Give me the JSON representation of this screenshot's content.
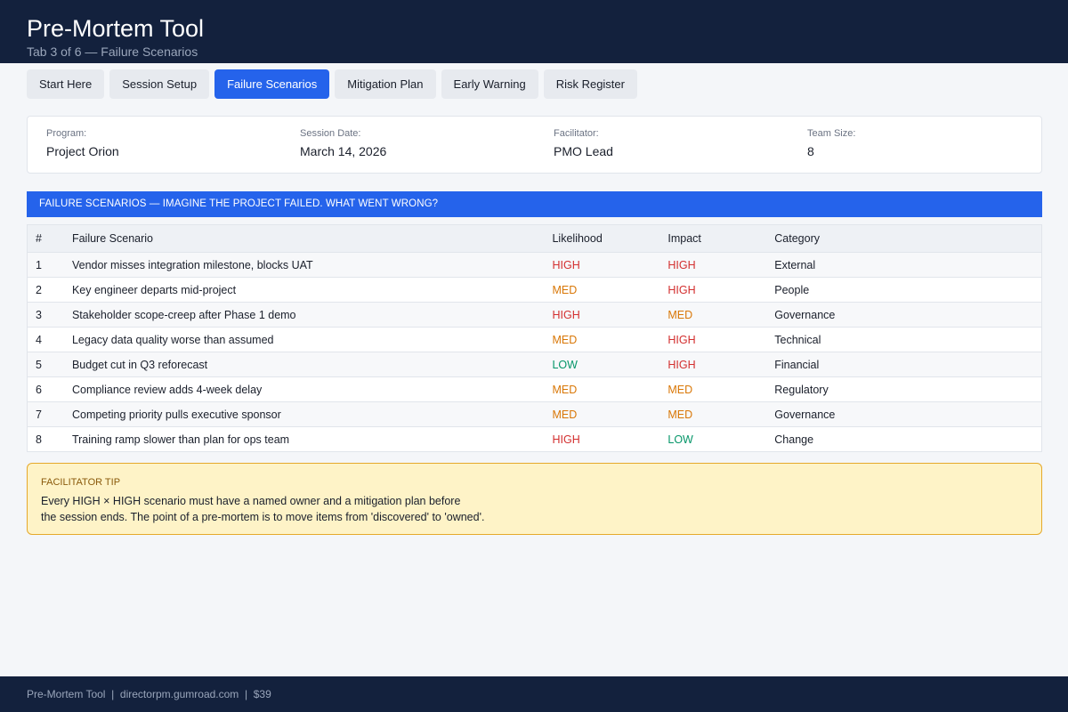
{
  "header": {
    "title": "Pre-Mortem Tool",
    "subtitle": "Tab 3 of 6 — Failure Scenarios"
  },
  "tabs": [
    {
      "label": "Start Here",
      "active": false
    },
    {
      "label": "Session Setup",
      "active": false
    },
    {
      "label": "Failure Scenarios",
      "active": true
    },
    {
      "label": "Mitigation Plan",
      "active": false
    },
    {
      "label": "Early Warning",
      "active": false
    },
    {
      "label": "Risk Register",
      "active": false
    }
  ],
  "info": {
    "program_label": "Program:",
    "program_value": "Project Orion",
    "date_label": "Session Date:",
    "date_value": "March 14, 2026",
    "facilitator_label": "Facilitator:",
    "facilitator_value": "PMO Lead",
    "team_label": "Team Size:",
    "team_value": "8"
  },
  "section": {
    "banner": "FAILURE SCENARIOS — IMAGINE THE PROJECT FAILED.  WHAT WENT WRONG?"
  },
  "table": {
    "headers": {
      "num": "#",
      "scenario": "Failure Scenario",
      "likelihood": "Likelihood",
      "impact": "Impact",
      "category": "Category"
    },
    "rows": [
      {
        "num": "1",
        "scenario": "Vendor misses integration milestone, blocks UAT",
        "likelihood": "HIGH",
        "impact": "HIGH",
        "category": "External"
      },
      {
        "num": "2",
        "scenario": "Key engineer departs mid-project",
        "likelihood": "MED",
        "impact": "HIGH",
        "category": "People"
      },
      {
        "num": "3",
        "scenario": "Stakeholder scope-creep after Phase 1 demo",
        "likelihood": "HIGH",
        "impact": "MED",
        "category": "Governance"
      },
      {
        "num": "4",
        "scenario": "Legacy data quality worse than assumed",
        "likelihood": "MED",
        "impact": "HIGH",
        "category": "Technical"
      },
      {
        "num": "5",
        "scenario": "Budget cut in Q3 reforecast",
        "likelihood": "LOW",
        "impact": "HIGH",
        "category": "Financial"
      },
      {
        "num": "6",
        "scenario": "Compliance review adds 4-week delay",
        "likelihood": "MED",
        "impact": "MED",
        "category": "Regulatory"
      },
      {
        "num": "7",
        "scenario": "Competing priority pulls executive sponsor",
        "likelihood": "MED",
        "impact": "MED",
        "category": "Governance"
      },
      {
        "num": "8",
        "scenario": "Training ramp slower than plan for ops team",
        "likelihood": "HIGH",
        "impact": "LOW",
        "category": "Change"
      }
    ]
  },
  "tip": {
    "title": "FACILITATOR TIP",
    "line1": "Every HIGH × HIGH scenario must have a named owner and a mitigation plan before",
    "line2": "the session ends. The point of a pre-mortem is to move items from 'discovered' to 'owned'."
  },
  "footer": {
    "text": "Pre-Mortem Tool  |  directorpm.gumroad.com  |  $39"
  },
  "colors": {
    "header_bg": "#13213d",
    "accent": "#2563eb",
    "high": "#d32f2f",
    "med": "#d97706",
    "low": "#059669",
    "tip_bg": "#fef3c7"
  }
}
